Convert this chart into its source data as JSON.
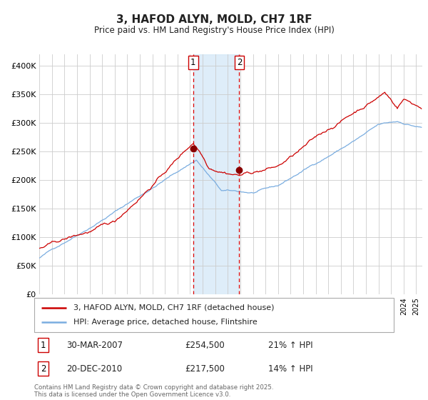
{
  "title": "3, HAFOD ALYN, MOLD, CH7 1RF",
  "subtitle": "Price paid vs. HM Land Registry's House Price Index (HPI)",
  "bg_color": "#ffffff",
  "plot_bg_color": "#ffffff",
  "grid_color": "#cccccc",
  "ylim": [
    0,
    420000
  ],
  "yticks": [
    0,
    50000,
    100000,
    150000,
    200000,
    250000,
    300000,
    350000,
    400000
  ],
  "ytick_labels": [
    "£0",
    "£50K",
    "£100K",
    "£150K",
    "£200K",
    "£250K",
    "£300K",
    "£350K",
    "£400K"
  ],
  "marker1_date_str": "30-MAR-2007",
  "marker2_date_str": "20-DEC-2010",
  "marker1_price": 254500,
  "marker2_price": 217500,
  "marker1_hpi": "21%",
  "marker2_hpi": "14%",
  "marker1_x": 2007.25,
  "marker2_x": 2010.92,
  "line1_color": "#cc0000",
  "line2_color": "#7aade0",
  "line1_label": "3, HAFOD ALYN, MOLD, CH7 1RF (detached house)",
  "line2_label": "HPI: Average price, detached house, Flintshire",
  "footer": "Contains HM Land Registry data © Crown copyright and database right 2025.\nThis data is licensed under the Open Government Licence v3.0.",
  "xlim_start": 1995.0,
  "xlim_end": 2025.5
}
